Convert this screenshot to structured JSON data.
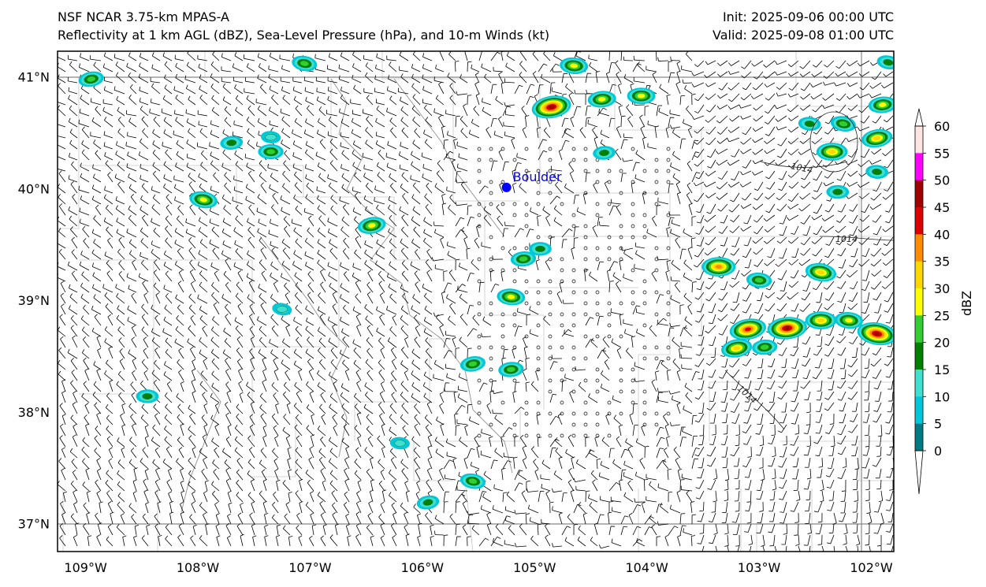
{
  "header": {
    "model": "NSF NCAR 3.75-km MPAS-A",
    "fields": "Reflectivity at 1 km AGL (dBZ), Sea-Level Pressure (hPa), and 10-m Winds (kt)",
    "init": "Init: 2025-09-06 00:00 UTC",
    "valid": "Valid: 2025-09-08 01:00 UTC"
  },
  "map": {
    "lat_labels": [
      "41°N",
      "40°N",
      "39°N",
      "38°N",
      "37°N"
    ],
    "lat_values": [
      41,
      40,
      39,
      38,
      37
    ],
    "lon_labels": [
      "109°W",
      "108°W",
      "107°W",
      "106°W",
      "105°W",
      "104°W",
      "103°W",
      "102°W"
    ],
    "lon_values": [
      -109,
      -108,
      -107,
      -106,
      -105,
      -104,
      -103,
      -102
    ],
    "extent": {
      "lon_min": -109.25,
      "lon_max": -101.8,
      "lat_min": 36.75,
      "lat_max": 41.23
    },
    "city": {
      "name": "Boulder",
      "lon": -105.25,
      "lat": 40.01,
      "color": "#0000ff"
    },
    "isobar_labels": [
      "1014",
      "1014",
      "1014"
    ],
    "storm_cells": [
      {
        "lon": -104.85,
        "lat": 40.73,
        "dbz": 45
      },
      {
        "lon": -104.4,
        "lat": 40.8,
        "dbz": 25
      },
      {
        "lon": -104.05,
        "lat": 40.83,
        "dbz": 25
      },
      {
        "lon": -104.65,
        "lat": 41.1,
        "dbz": 25
      },
      {
        "lon": -107.05,
        "lat": 41.12,
        "dbz": 20
      },
      {
        "lon": -108.95,
        "lat": 40.98,
        "dbz": 20
      },
      {
        "lon": -107.7,
        "lat": 40.41,
        "dbz": 15
      },
      {
        "lon": -107.35,
        "lat": 40.33,
        "dbz": 20
      },
      {
        "lon": -107.35,
        "lat": 40.46,
        "dbz": 10
      },
      {
        "lon": -107.95,
        "lat": 39.9,
        "dbz": 25
      },
      {
        "lon": -106.45,
        "lat": 39.67,
        "dbz": 25
      },
      {
        "lon": -105.1,
        "lat": 39.37,
        "dbz": 20
      },
      {
        "lon": -104.95,
        "lat": 39.46,
        "dbz": 15
      },
      {
        "lon": -105.21,
        "lat": 39.03,
        "dbz": 25
      },
      {
        "lon": -107.25,
        "lat": 38.92,
        "dbz": 10
      },
      {
        "lon": -105.55,
        "lat": 38.43,
        "dbz": 20
      },
      {
        "lon": -105.21,
        "lat": 38.38,
        "dbz": 20
      },
      {
        "lon": -108.45,
        "lat": 38.14,
        "dbz": 15
      },
      {
        "lon": -106.2,
        "lat": 37.72,
        "dbz": 10
      },
      {
        "lon": -105.55,
        "lat": 37.38,
        "dbz": 20
      },
      {
        "lon": -105.95,
        "lat": 37.19,
        "dbz": 15
      },
      {
        "lon": -104.38,
        "lat": 40.32,
        "dbz": 15
      },
      {
        "lon": -103.36,
        "lat": 39.3,
        "dbz": 35
      },
      {
        "lon": -103.0,
        "lat": 39.18,
        "dbz": 20
      },
      {
        "lon": -102.45,
        "lat": 39.25,
        "dbz": 30
      },
      {
        "lon": -103.1,
        "lat": 38.74,
        "dbz": 40
      },
      {
        "lon": -102.75,
        "lat": 38.75,
        "dbz": 45
      },
      {
        "lon": -102.45,
        "lat": 38.82,
        "dbz": 30
      },
      {
        "lon": -102.2,
        "lat": 38.82,
        "dbz": 25
      },
      {
        "lon": -101.95,
        "lat": 38.7,
        "dbz": 45
      },
      {
        "lon": -103.2,
        "lat": 38.57,
        "dbz": 30
      },
      {
        "lon": -102.95,
        "lat": 38.58,
        "dbz": 20
      },
      {
        "lon": -102.35,
        "lat": 40.33,
        "dbz": 30
      },
      {
        "lon": -102.55,
        "lat": 40.58,
        "dbz": 15
      },
      {
        "lon": -102.25,
        "lat": 40.58,
        "dbz": 20
      },
      {
        "lon": -101.95,
        "lat": 40.45,
        "dbz": 30
      },
      {
        "lon": -101.9,
        "lat": 40.75,
        "dbz": 25
      },
      {
        "lon": -102.3,
        "lat": 39.97,
        "dbz": 15
      },
      {
        "lon": -101.95,
        "lat": 40.15,
        "dbz": 15
      },
      {
        "lon": -101.85,
        "lat": 41.13,
        "dbz": 15
      }
    ]
  },
  "colorbar": {
    "label": "dBZ",
    "ticks": [
      "0",
      "5",
      "10",
      "15",
      "20",
      "25",
      "30",
      "35",
      "40",
      "45",
      "50",
      "55",
      "60"
    ],
    "colors": [
      "#007b83",
      "#00c8d8",
      "#40e0d0",
      "#008000",
      "#32cd32",
      "#ffff00",
      "#ffd700",
      "#ff8c00",
      "#dd0000",
      "#a00000",
      "#ff00ff",
      "#ffe4e1"
    ]
  }
}
